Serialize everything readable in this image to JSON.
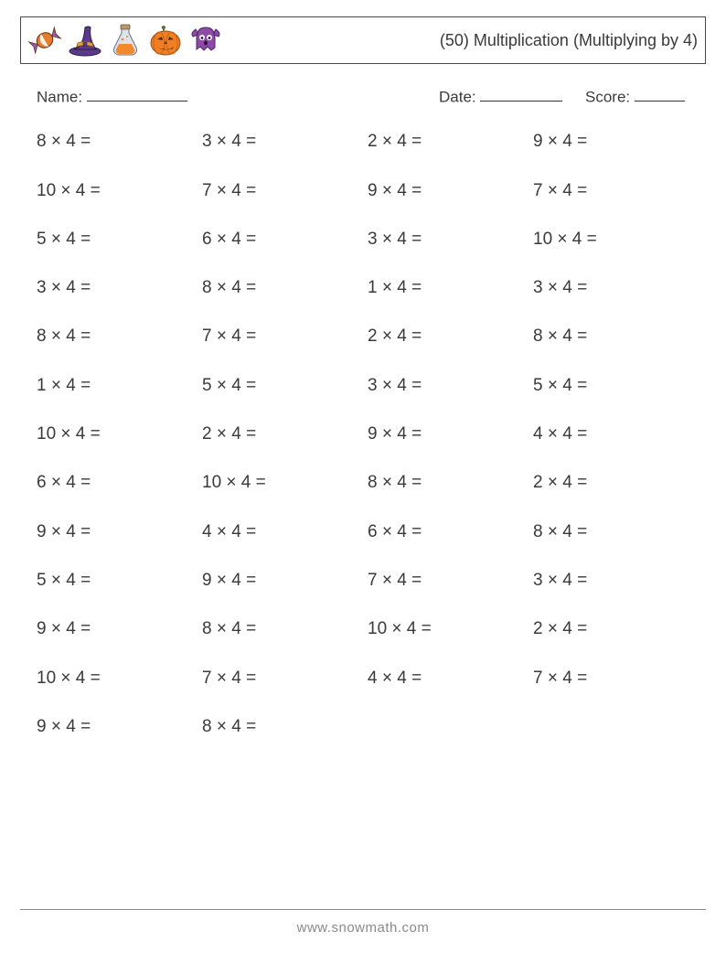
{
  "header": {
    "title": "(50) Multiplication (Multiplying by 4)",
    "icon_names": [
      "candy",
      "witch-hat",
      "potion",
      "pumpkin",
      "ghost"
    ]
  },
  "labels": {
    "name": "Name:",
    "date": "Date:",
    "score": "Score:"
  },
  "style": {
    "page_bg": "#ffffff",
    "text_color": "#3a3a3a",
    "border_color": "#4a4a4a",
    "font_size_title": 18,
    "font_size_labels": 17,
    "font_size_problems": 19,
    "columns": 4,
    "row_gap": 31.3,
    "icon_colors": {
      "candy_orange": "#e77c2d",
      "candy_purple": "#9b59b6",
      "hat_purple": "#5b3a8c",
      "hat_band": "#e8a23a",
      "potion_glass": "#aeb7c9",
      "potion_liquid": "#f08a2c",
      "pumpkin": "#ef7f24",
      "pumpkin_dark": "#b35a14",
      "pumpkin_stem": "#5e7a3a",
      "ghost": "#8d4aa8",
      "ghost_eye": "#ffffff"
    }
  },
  "problems": [
    "8 × 4 =",
    "3 × 4 =",
    "2 × 4 =",
    "9 × 4 =",
    "10 × 4 =",
    "7 × 4 =",
    "9 × 4 =",
    "7 × 4 =",
    "5 × 4 =",
    "6 × 4 =",
    "3 × 4 =",
    "10 × 4 =",
    "3 × 4 =",
    "8 × 4 =",
    "1 × 4 =",
    "3 × 4 =",
    "8 × 4 =",
    "7 × 4 =",
    "2 × 4 =",
    "8 × 4 =",
    "1 × 4 =",
    "5 × 4 =",
    "3 × 4 =",
    "5 × 4 =",
    "10 × 4 =",
    "2 × 4 =",
    "9 × 4 =",
    "4 × 4 =",
    "6 × 4 =",
    "10 × 4 =",
    "8 × 4 =",
    "2 × 4 =",
    "9 × 4 =",
    "4 × 4 =",
    "6 × 4 =",
    "8 × 4 =",
    "5 × 4 =",
    "9 × 4 =",
    "7 × 4 =",
    "3 × 4 =",
    "9 × 4 =",
    "8 × 4 =",
    "10 × 4 =",
    "2 × 4 =",
    "10 × 4 =",
    "7 × 4 =",
    "4 × 4 =",
    "7 × 4 =",
    "9 × 4 =",
    "8 × 4 ="
  ],
  "footer": "www.snowmath.com"
}
